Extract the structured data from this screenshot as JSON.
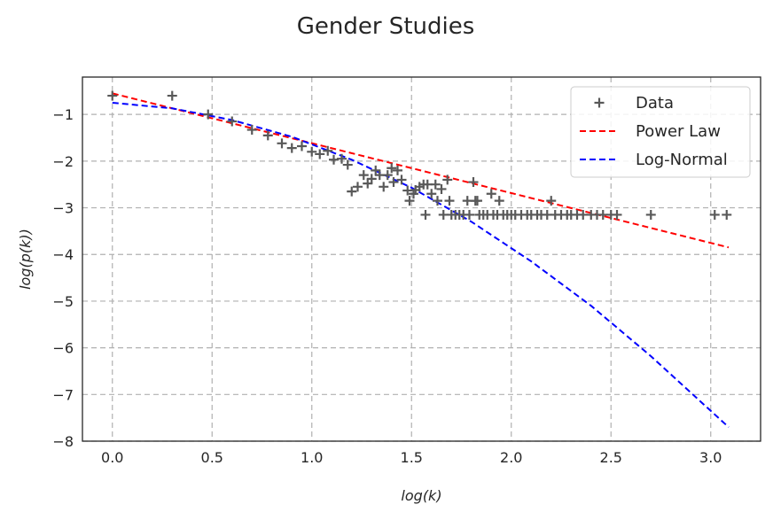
{
  "chart_data": {
    "type": "scatter",
    "title": "Gender Studies",
    "xlabel": "log(k)",
    "ylabel": "log(p(k))",
    "xlim": [
      -0.15,
      3.25
    ],
    "ylim": [
      -8.0,
      -0.2
    ],
    "xticks": [
      0.0,
      0.5,
      1.0,
      1.5,
      2.0,
      2.5,
      3.0
    ],
    "xtick_labels": [
      "0.0",
      "0.5",
      "1.0",
      "1.5",
      "2.0",
      "2.5",
      "3.0"
    ],
    "yticks": [
      -1,
      -2,
      -3,
      -4,
      -5,
      -6,
      -7,
      -8
    ],
    "ytick_labels": [
      "−1",
      "−2",
      "−3",
      "−4",
      "−5",
      "−6",
      "−7",
      "−8"
    ],
    "grid": true,
    "legend_position": "top-right",
    "series": [
      {
        "name": "Data",
        "kind": "scatter",
        "marker": "+",
        "color": "#595959",
        "points": [
          [
            0.0,
            -0.6
          ],
          [
            0.3,
            -0.6
          ],
          [
            0.48,
            -1.0
          ],
          [
            0.6,
            -1.15
          ],
          [
            0.7,
            -1.33
          ],
          [
            0.78,
            -1.45
          ],
          [
            0.85,
            -1.62
          ],
          [
            0.9,
            -1.72
          ],
          [
            0.95,
            -1.68
          ],
          [
            1.0,
            -1.8
          ],
          [
            1.04,
            -1.85
          ],
          [
            1.08,
            -1.78
          ],
          [
            1.11,
            -1.97
          ],
          [
            1.15,
            -1.95
          ],
          [
            1.18,
            -2.08
          ],
          [
            1.2,
            -2.65
          ],
          [
            1.23,
            -2.55
          ],
          [
            1.26,
            -2.3
          ],
          [
            1.28,
            -2.48
          ],
          [
            1.3,
            -2.38
          ],
          [
            1.32,
            -2.2
          ],
          [
            1.34,
            -2.3
          ],
          [
            1.36,
            -2.55
          ],
          [
            1.38,
            -2.3
          ],
          [
            1.4,
            -2.15
          ],
          [
            1.41,
            -2.45
          ],
          [
            1.43,
            -2.2
          ],
          [
            1.45,
            -2.4
          ],
          [
            1.48,
            -2.63
          ],
          [
            1.49,
            -2.85
          ],
          [
            1.51,
            -2.7
          ],
          [
            1.52,
            -2.62
          ],
          [
            1.54,
            -2.55
          ],
          [
            1.56,
            -2.5
          ],
          [
            1.57,
            -3.15
          ],
          [
            1.58,
            -2.5
          ],
          [
            1.6,
            -2.7
          ],
          [
            1.62,
            -2.5
          ],
          [
            1.63,
            -2.85
          ],
          [
            1.65,
            -2.6
          ],
          [
            1.66,
            -3.15
          ],
          [
            1.68,
            -2.4
          ],
          [
            1.69,
            -2.85
          ],
          [
            1.7,
            -3.15
          ],
          [
            1.72,
            -3.15
          ],
          [
            1.74,
            -3.15
          ],
          [
            1.76,
            -3.15
          ],
          [
            1.78,
            -2.85
          ],
          [
            1.79,
            -3.15
          ],
          [
            1.81,
            -2.45
          ],
          [
            1.82,
            -2.85
          ],
          [
            1.83,
            -2.85
          ],
          [
            1.84,
            -3.15
          ],
          [
            1.86,
            -3.15
          ],
          [
            1.88,
            -3.15
          ],
          [
            1.9,
            -2.7
          ],
          [
            1.91,
            -3.15
          ],
          [
            1.93,
            -3.15
          ],
          [
            1.94,
            -2.85
          ],
          [
            1.96,
            -3.15
          ],
          [
            1.98,
            -3.15
          ],
          [
            2.0,
            -3.15
          ],
          [
            2.02,
            -3.15
          ],
          [
            2.05,
            -3.15
          ],
          [
            2.08,
            -3.15
          ],
          [
            2.1,
            -3.15
          ],
          [
            2.13,
            -3.15
          ],
          [
            2.15,
            -3.15
          ],
          [
            2.18,
            -3.15
          ],
          [
            2.2,
            -2.85
          ],
          [
            2.22,
            -3.15
          ],
          [
            2.25,
            -3.15
          ],
          [
            2.28,
            -3.15
          ],
          [
            2.3,
            -3.15
          ],
          [
            2.33,
            -3.15
          ],
          [
            2.36,
            -3.15
          ],
          [
            2.4,
            -3.15
          ],
          [
            2.43,
            -3.15
          ],
          [
            2.46,
            -3.15
          ],
          [
            2.5,
            -3.15
          ],
          [
            2.53,
            -3.15
          ],
          [
            2.7,
            -3.15
          ],
          [
            3.02,
            -3.15
          ],
          [
            3.08,
            -3.15
          ]
        ]
      },
      {
        "name": "Power Law",
        "kind": "line",
        "style": "dashed",
        "color": "#ff0000",
        "x": [
          0.0,
          3.09
        ],
        "y": [
          -0.55,
          -3.85
        ]
      },
      {
        "name": "Log-Normal",
        "kind": "line",
        "style": "dashed",
        "color": "#0000ff",
        "x": [
          0.0,
          0.3,
          0.6,
          0.9,
          1.2,
          1.5,
          1.8,
          2.1,
          2.4,
          2.7,
          3.0,
          3.09
        ],
        "y": [
          -0.75,
          -0.87,
          -1.12,
          -1.48,
          -1.97,
          -2.57,
          -3.3,
          -4.15,
          -5.1,
          -6.18,
          -7.35,
          -7.7
        ]
      }
    ]
  }
}
